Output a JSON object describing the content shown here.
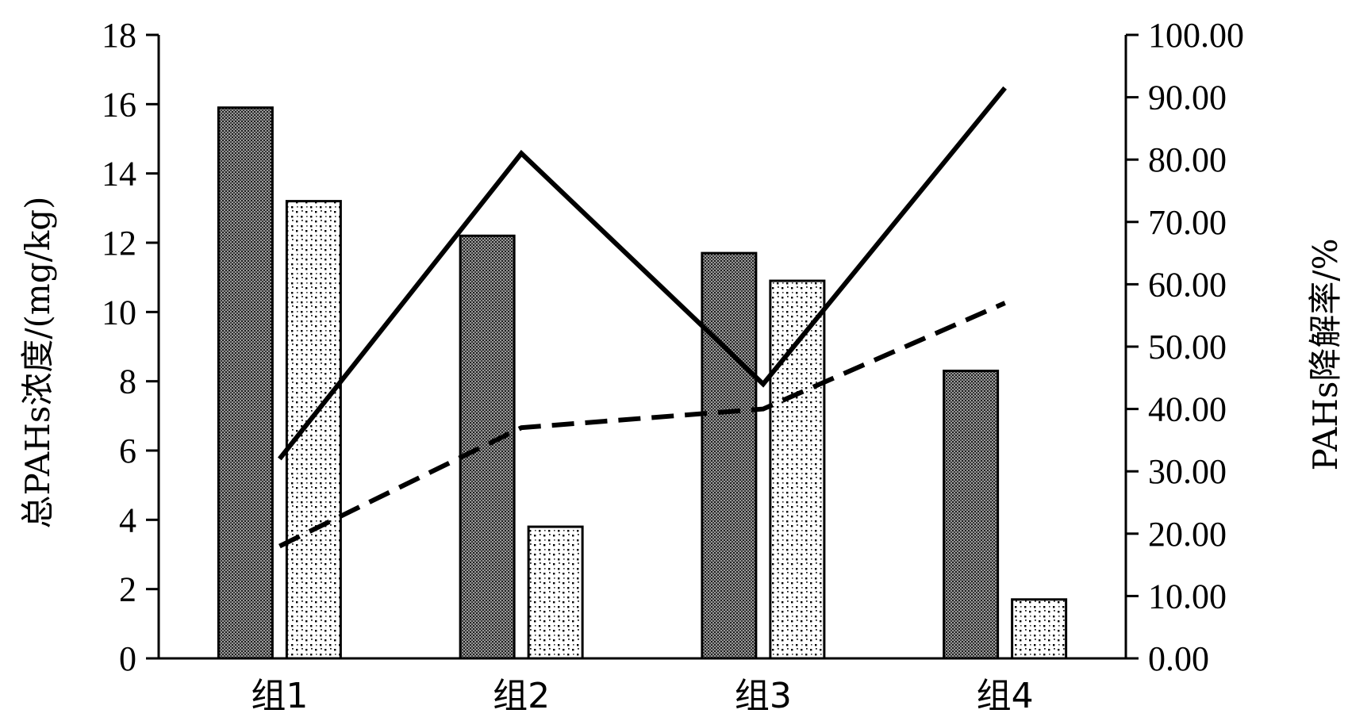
{
  "chart_data": {
    "type": "bar",
    "categories": [
      "组1",
      "组2",
      "组3",
      "组4"
    ],
    "series": [
      {
        "kind": "bar",
        "axis": "left",
        "pattern": "dense-dot",
        "values": [
          15.9,
          12.2,
          11.7,
          8.3
        ]
      },
      {
        "kind": "bar",
        "axis": "left",
        "pattern": "sparse-dot",
        "values": [
          13.2,
          3.8,
          10.9,
          1.7
        ]
      },
      {
        "kind": "line",
        "axis": "right",
        "style": "solid",
        "values": [
          32.0,
          81.0,
          44.0,
          91.5
        ]
      },
      {
        "kind": "line",
        "axis": "right",
        "style": "dashed",
        "values": [
          18.0,
          37.0,
          40.0,
          57.0
        ]
      }
    ],
    "ylabel": "总PAHs浓度/(mg/kg)",
    "y2label": "PAHs降解率/%",
    "ylim": [
      0,
      18
    ],
    "y2lim": [
      0,
      100
    ],
    "yticks": [
      "0",
      "2",
      "4",
      "6",
      "8",
      "10",
      "12",
      "14",
      "16",
      "18"
    ],
    "y2ticks": [
      "0.00",
      "10.00",
      "20.00",
      "30.00",
      "40.00",
      "50.00",
      "60.00",
      "70.00",
      "80.00",
      "90.00",
      "100.00"
    ],
    "grid": false,
    "legend": "none",
    "colors": {
      "bar_dark": "#6a6a6a",
      "bar_light": "#ffffff",
      "line": "#000000"
    }
  }
}
